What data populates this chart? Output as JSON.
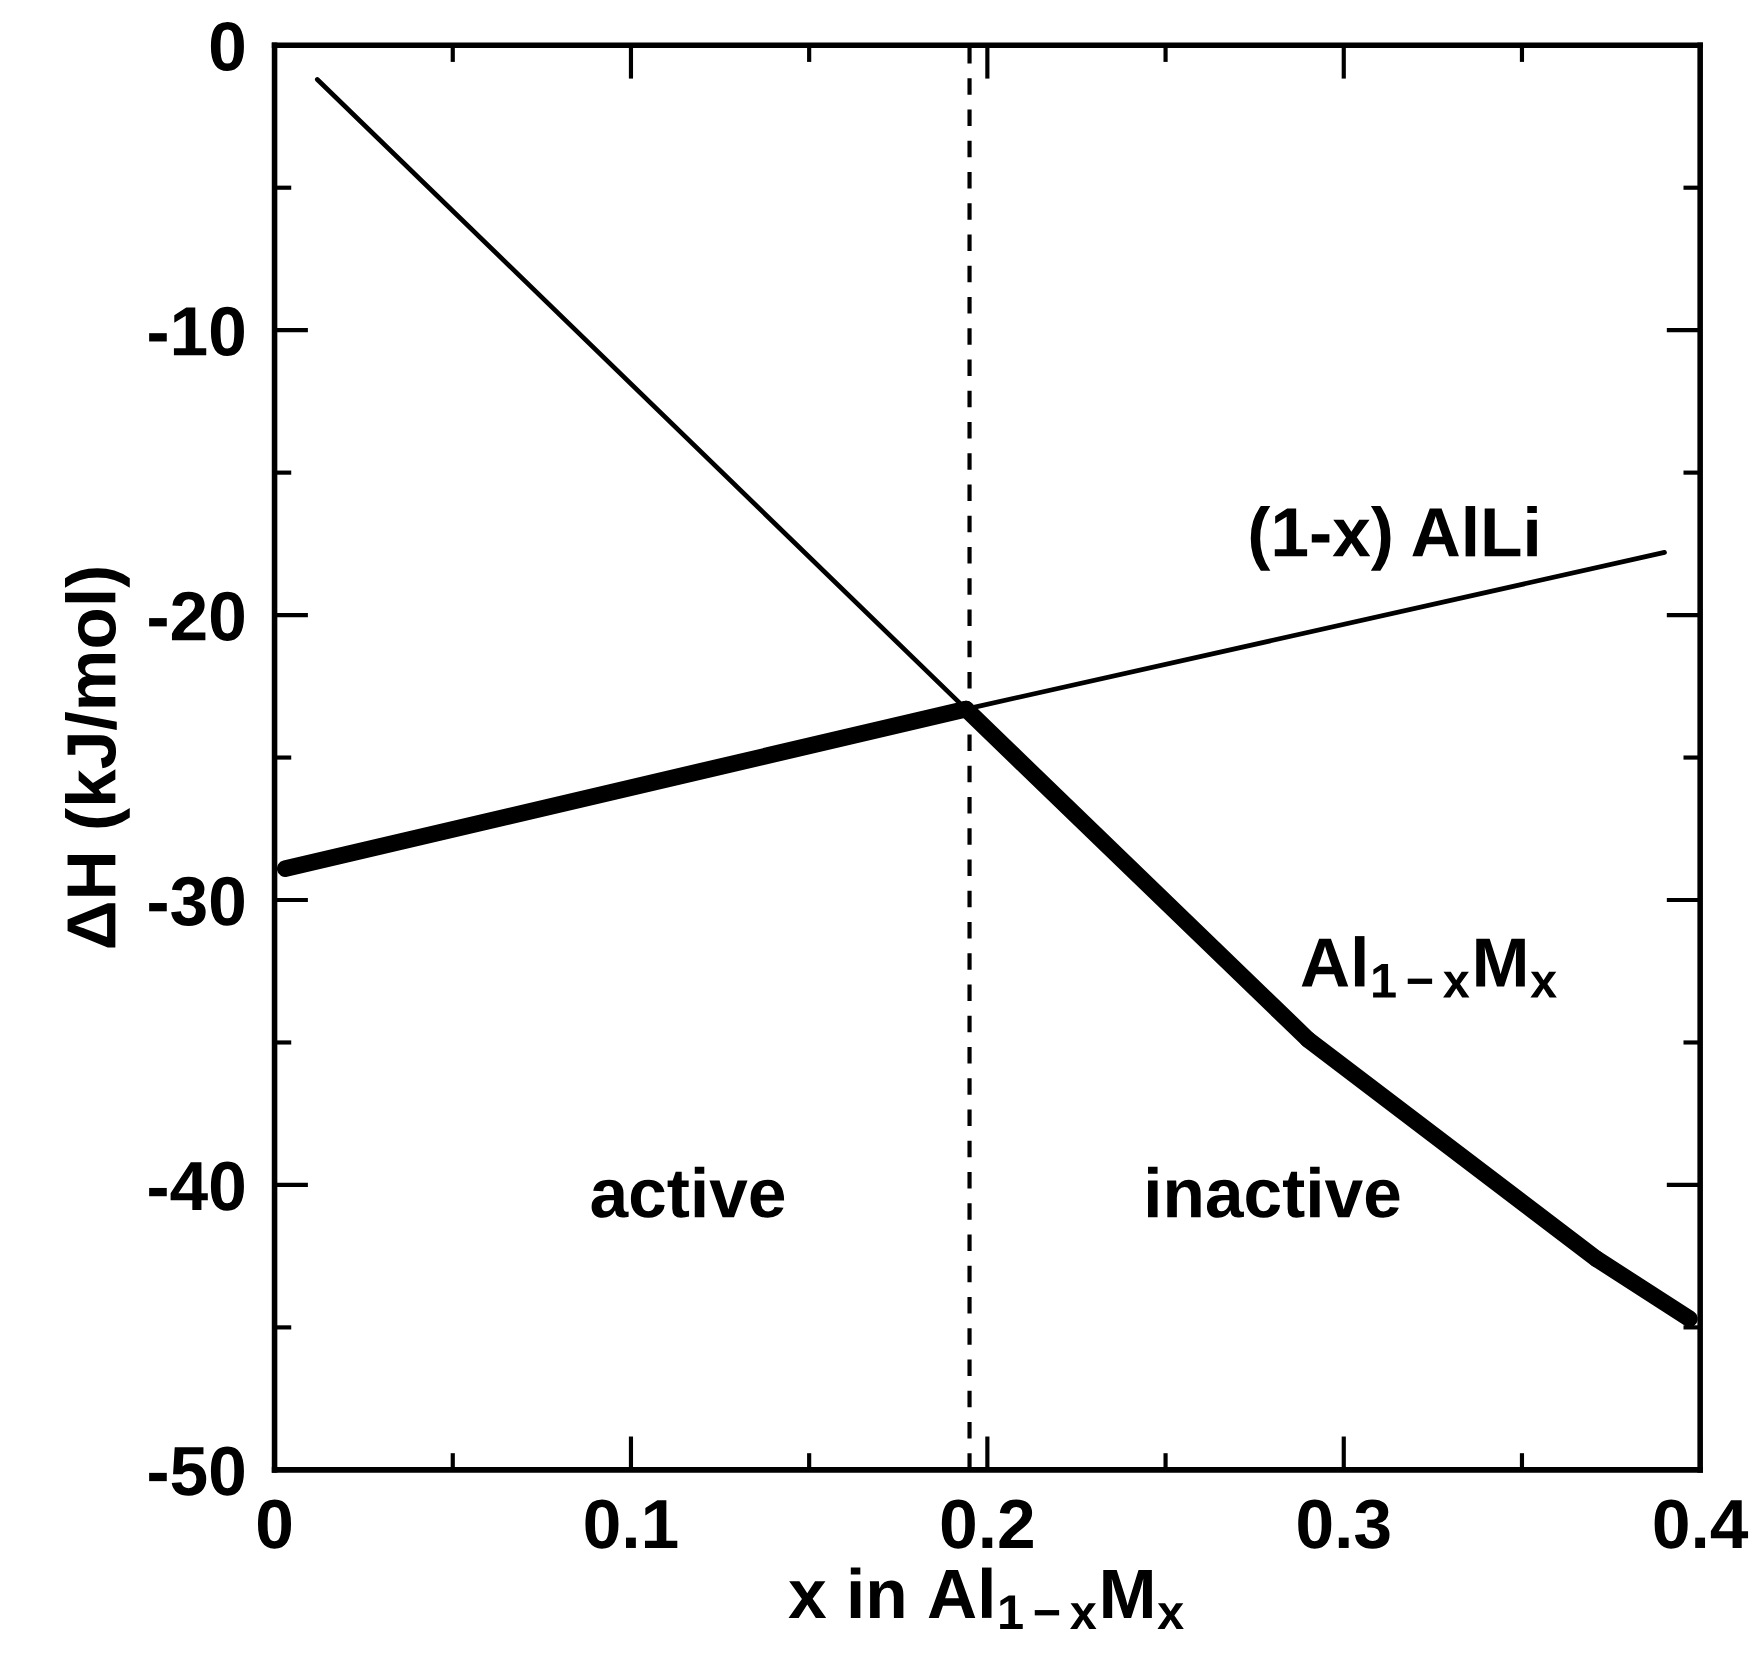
{
  "chart_data": {
    "type": "line",
    "xlabel": "x in Al$_{1−x}$M$_{x}$",
    "ylabel": "ΔH (kJ/mol)",
    "series": [
      {
        "name": "(1-x) AlLi",
        "color": "#000000",
        "x": [
          0.003,
          0.194,
          0.39
        ],
        "values": [
          -28.9,
          -23.3,
          -17.8
        ]
      },
      {
        "name": "Al$_{1−x}$M$_{x}$",
        "color": "#000000",
        "x": [
          0.012,
          0.194,
          0.29,
          0.371,
          0.397
        ],
        "values": [
          -1.2,
          -23.3,
          -34.9,
          -42.6,
          -44.7
        ]
      }
    ],
    "ref_lines": [
      {
        "axis": "x",
        "value": 0.195,
        "line_style": "dashed",
        "color": "#000000"
      }
    ],
    "annotations": [
      "active",
      "inactive"
    ],
    "xlim": [
      0,
      0.4
    ],
    "xticks": [
      0,
      0.1,
      0.2,
      0.3,
      0.4
    ],
    "ylim": [
      -50,
      0
    ],
    "yticks": [
      -50,
      -40,
      -30,
      -20,
      -10,
      0
    ],
    "grid": false,
    "legend": false,
    "marker": "none",
    "line_style": "solid"
  }
}
